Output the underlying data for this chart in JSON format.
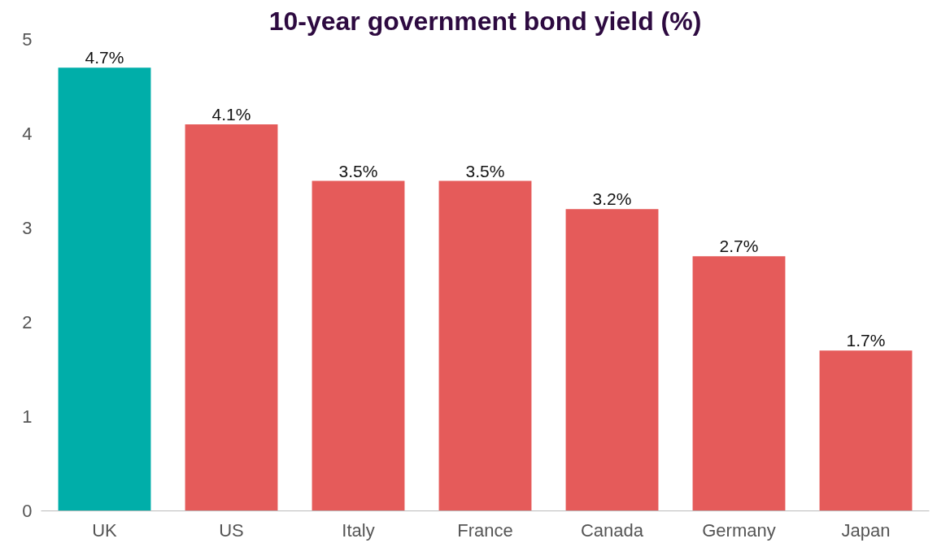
{
  "chart_data": {
    "type": "bar",
    "title": "10-year government bond yield (%)",
    "categories": [
      "UK",
      "US",
      "Italy",
      "France",
      "Canada",
      "Germany",
      "Japan"
    ],
    "values": [
      4.7,
      4.1,
      3.5,
      3.5,
      3.2,
      2.7,
      1.7
    ],
    "colors": [
      "#00aea9",
      "#e55b5a",
      "#e55b5a",
      "#e55b5a",
      "#e55b5a",
      "#e55b5a",
      "#e55b5a"
    ],
    "value_labels": [
      "4.7%",
      "4.1%",
      "3.5%",
      "3.5%",
      "3.2%",
      "2.7%",
      "1.7%"
    ],
    "ylim": [
      0,
      5
    ],
    "yticks": [
      0,
      1,
      2,
      3,
      4,
      5
    ],
    "grid": false
  }
}
